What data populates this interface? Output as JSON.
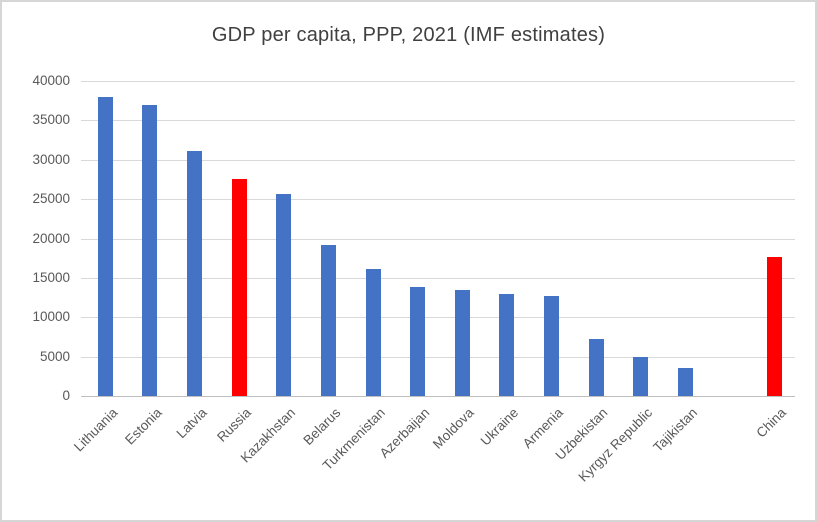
{
  "chart_data": {
    "type": "bar",
    "title": "GDP per capita, PPP, 2021 (IMF estimates)",
    "xlabel": "",
    "ylabel": "",
    "ylim": [
      0,
      40000
    ],
    "yticks": [
      0,
      5000,
      10000,
      15000,
      20000,
      25000,
      30000,
      35000,
      40000
    ],
    "grid": true,
    "legend": "none",
    "bars": [
      {
        "label": "Lithuania",
        "value": 38000,
        "color": "#4472C4"
      },
      {
        "label": "Estonia",
        "value": 37000,
        "color": "#4472C4"
      },
      {
        "label": "Latvia",
        "value": 31100,
        "color": "#4472C4"
      },
      {
        "label": "Russia",
        "value": 27500,
        "color": "#FF0000"
      },
      {
        "label": "Kazakhstan",
        "value": 25600,
        "color": "#4472C4"
      },
      {
        "label": "Belarus",
        "value": 19200,
        "color": "#4472C4"
      },
      {
        "label": "Turkmenistan",
        "value": 16100,
        "color": "#4472C4"
      },
      {
        "label": "Azerbaijan",
        "value": 13800,
        "color": "#4472C4"
      },
      {
        "label": "Moldova",
        "value": 13500,
        "color": "#4472C4"
      },
      {
        "label": "Ukraine",
        "value": 12900,
        "color": "#4472C4"
      },
      {
        "label": "Armenia",
        "value": 12700,
        "color": "#4472C4"
      },
      {
        "label": "Uzbekistan",
        "value": 7200,
        "color": "#4472C4"
      },
      {
        "label": "Kyrgyz Republic",
        "value": 4900,
        "color": "#4472C4"
      },
      {
        "label": "Tajikistan",
        "value": 3600,
        "color": "#4472C4"
      },
      {
        "label": "",
        "value": null,
        "color": null
      },
      {
        "label": "China",
        "value": 17600,
        "color": "#FF0000"
      }
    ],
    "colors": {
      "default_bar": "#4472C4",
      "highlight_bar": "#FF0000",
      "gridline": "#D9D9D9",
      "axis_line": "#BFBFBF",
      "axis_text": "#595959",
      "title_text": "#404040"
    }
  }
}
